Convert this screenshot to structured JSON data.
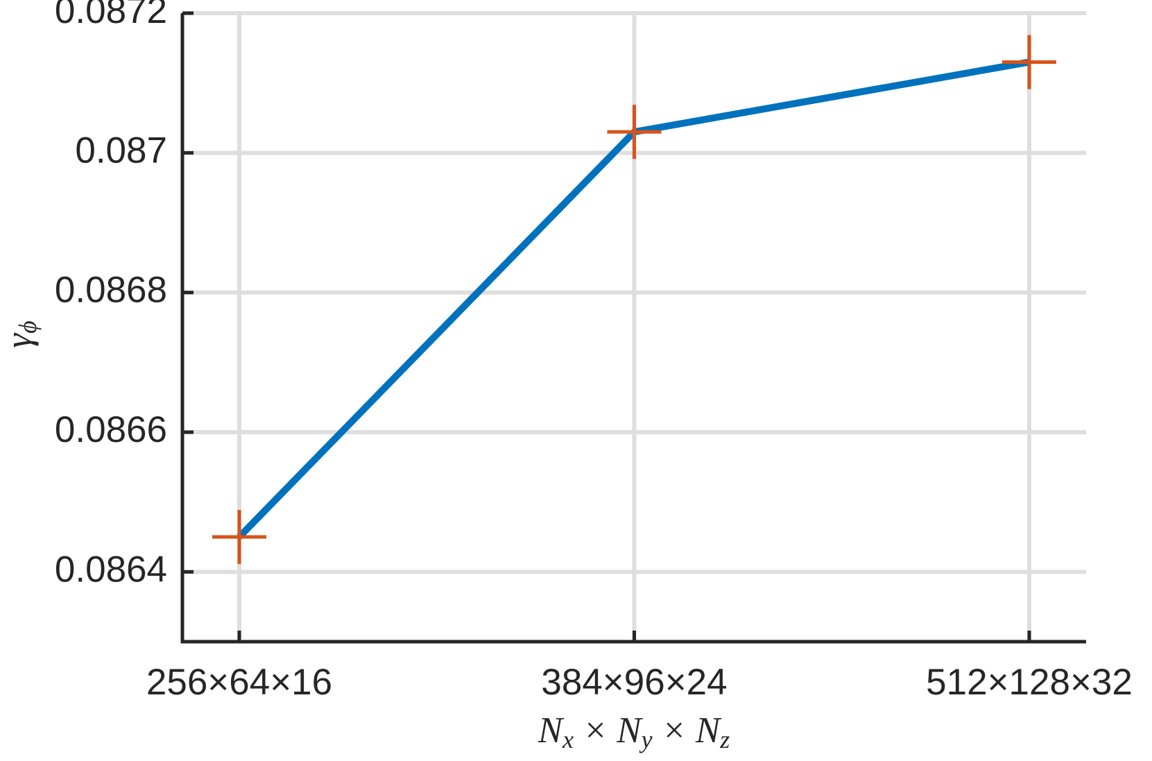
{
  "chart_data": {
    "type": "line",
    "categories": [
      "256×64×16",
      "384×96×24",
      "512×128×32"
    ],
    "series": [
      {
        "values": [
          0.08645,
          0.08703,
          0.08713
        ],
        "color": "#0072bd",
        "marker": "+",
        "marker_color": "#d95319"
      }
    ],
    "ylim": [
      0.0863,
      0.0872
    ],
    "yticks": [
      0.0864,
      0.0866,
      0.0868,
      0.087,
      0.0872
    ],
    "grid": true,
    "ylabel": [
      "γ",
      "ϕ"
    ],
    "xlabel": [
      "N",
      "x",
      " × N",
      "y",
      " × N",
      "z"
    ]
  }
}
